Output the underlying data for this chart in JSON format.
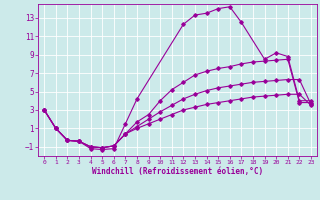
{
  "xlabel": "Windchill (Refroidissement éolien,°C)",
  "bg_color": "#cceaea",
  "line_color": "#990099",
  "grid_color": "#ffffff",
  "xlim": [
    -0.5,
    23.5
  ],
  "ylim": [
    -2,
    14.5
  ],
  "xticks": [
    0,
    1,
    2,
    3,
    4,
    5,
    6,
    7,
    8,
    9,
    10,
    11,
    12,
    13,
    14,
    15,
    16,
    17,
    18,
    19,
    20,
    21,
    22,
    23
  ],
  "yticks": [
    -1,
    1,
    3,
    5,
    7,
    9,
    11,
    13
  ],
  "lines": [
    {
      "x": [
        0,
        1,
        2,
        3,
        4,
        5,
        6,
        7,
        8,
        12,
        13,
        14,
        15,
        16,
        17,
        19,
        20,
        21,
        22,
        23
      ],
      "y": [
        3,
        1,
        -0.3,
        -0.4,
        -1.2,
        -1.3,
        -1.2,
        1.5,
        4.2,
        12.3,
        13.3,
        13.5,
        14.0,
        14.2,
        12.5,
        8.5,
        9.2,
        8.8,
        4.0,
        4.0
      ]
    },
    {
      "x": [
        0,
        1,
        2,
        3,
        4,
        5,
        6,
        7,
        8,
        9,
        10,
        11,
        12,
        13,
        14,
        15,
        16,
        17,
        18,
        19,
        20,
        21,
        22,
        23
      ],
      "y": [
        3,
        1,
        -0.3,
        -0.4,
        -1.0,
        -1.1,
        -0.9,
        0.4,
        1.7,
        2.5,
        4.0,
        5.2,
        6.0,
        6.8,
        7.2,
        7.5,
        7.7,
        8.0,
        8.2,
        8.3,
        8.4,
        8.5,
        3.8,
        3.8
      ]
    },
    {
      "x": [
        0,
        1,
        2,
        3,
        4,
        5,
        6,
        7,
        8,
        9,
        10,
        11,
        12,
        13,
        14,
        15,
        16,
        17,
        18,
        19,
        20,
        21,
        22,
        23
      ],
      "y": [
        3,
        1,
        -0.3,
        -0.4,
        -1.0,
        -1.1,
        -0.9,
        0.4,
        1.2,
        2.0,
        2.8,
        3.5,
        4.2,
        4.7,
        5.1,
        5.4,
        5.6,
        5.8,
        6.0,
        6.1,
        6.2,
        6.3,
        6.3,
        3.6
      ]
    },
    {
      "x": [
        0,
        1,
        2,
        3,
        4,
        5,
        6,
        7,
        8,
        9,
        10,
        11,
        12,
        13,
        14,
        15,
        16,
        17,
        18,
        19,
        20,
        21,
        22,
        23
      ],
      "y": [
        3,
        1,
        -0.3,
        -0.4,
        -1.0,
        -1.1,
        -0.9,
        0.4,
        1.0,
        1.5,
        2.0,
        2.5,
        3.0,
        3.3,
        3.6,
        3.8,
        4.0,
        4.2,
        4.4,
        4.5,
        4.6,
        4.7,
        4.7,
        3.5
      ]
    }
  ]
}
